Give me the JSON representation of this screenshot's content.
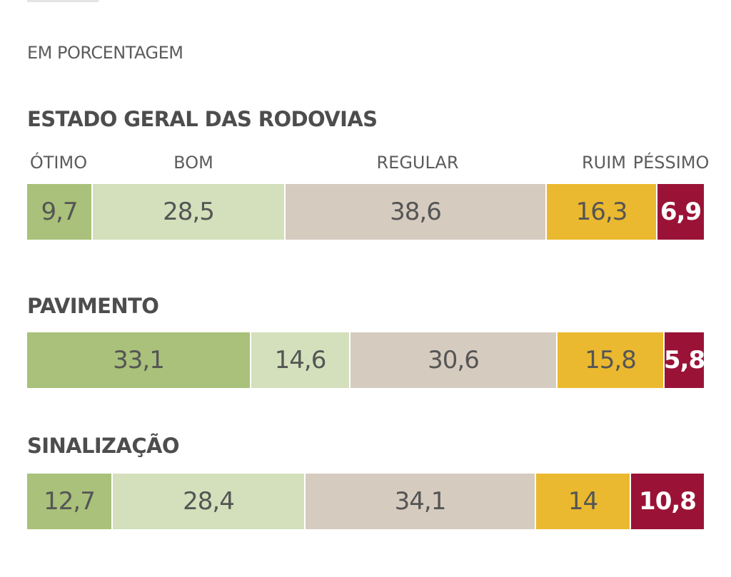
{
  "subtitle": "EM PORCENTAGEM",
  "legend": [
    "ÓTIMO",
    "BOM",
    "REGULAR",
    "RUIM",
    "PÉSSIMO"
  ],
  "colors": {
    "otimo": "#a9c17a",
    "bom": "#d3e0bb",
    "regular": "#d6cbbf",
    "ruim": "#ebb92f",
    "pessimo": "#9a1336",
    "label_dark": "#555555",
    "label_light": "#ffffff"
  },
  "chart_data": {
    "type": "bar",
    "orientation": "horizontal",
    "stacked": true,
    "unit": "%",
    "subtitle": "EM PORCENTAGEM",
    "series_names": [
      "ÓTIMO",
      "BOM",
      "REGULAR",
      "RUIM",
      "PÉSSIMO"
    ],
    "rows": [
      {
        "title": "ESTADO GERAL DAS RODOVIAS",
        "values": [
          9.7,
          28.5,
          38.6,
          16.3,
          6.9
        ],
        "labels": [
          "9,7",
          "28,5",
          "38,6",
          "16,3",
          "6,9"
        ]
      },
      {
        "title": "PAVIMENTO",
        "values": [
          33.1,
          14.6,
          30.6,
          15.8,
          5.8
        ],
        "labels": [
          "33,1",
          "14,6",
          "30,6",
          "15,8",
          "5,8"
        ]
      },
      {
        "title": "SINALIZAÇÃO",
        "values": [
          12.7,
          28.4,
          34.1,
          14,
          10.8
        ],
        "labels": [
          "12,7",
          "28,4",
          "34,1",
          "14",
          "10,8"
        ]
      }
    ],
    "legend_position": "top"
  }
}
